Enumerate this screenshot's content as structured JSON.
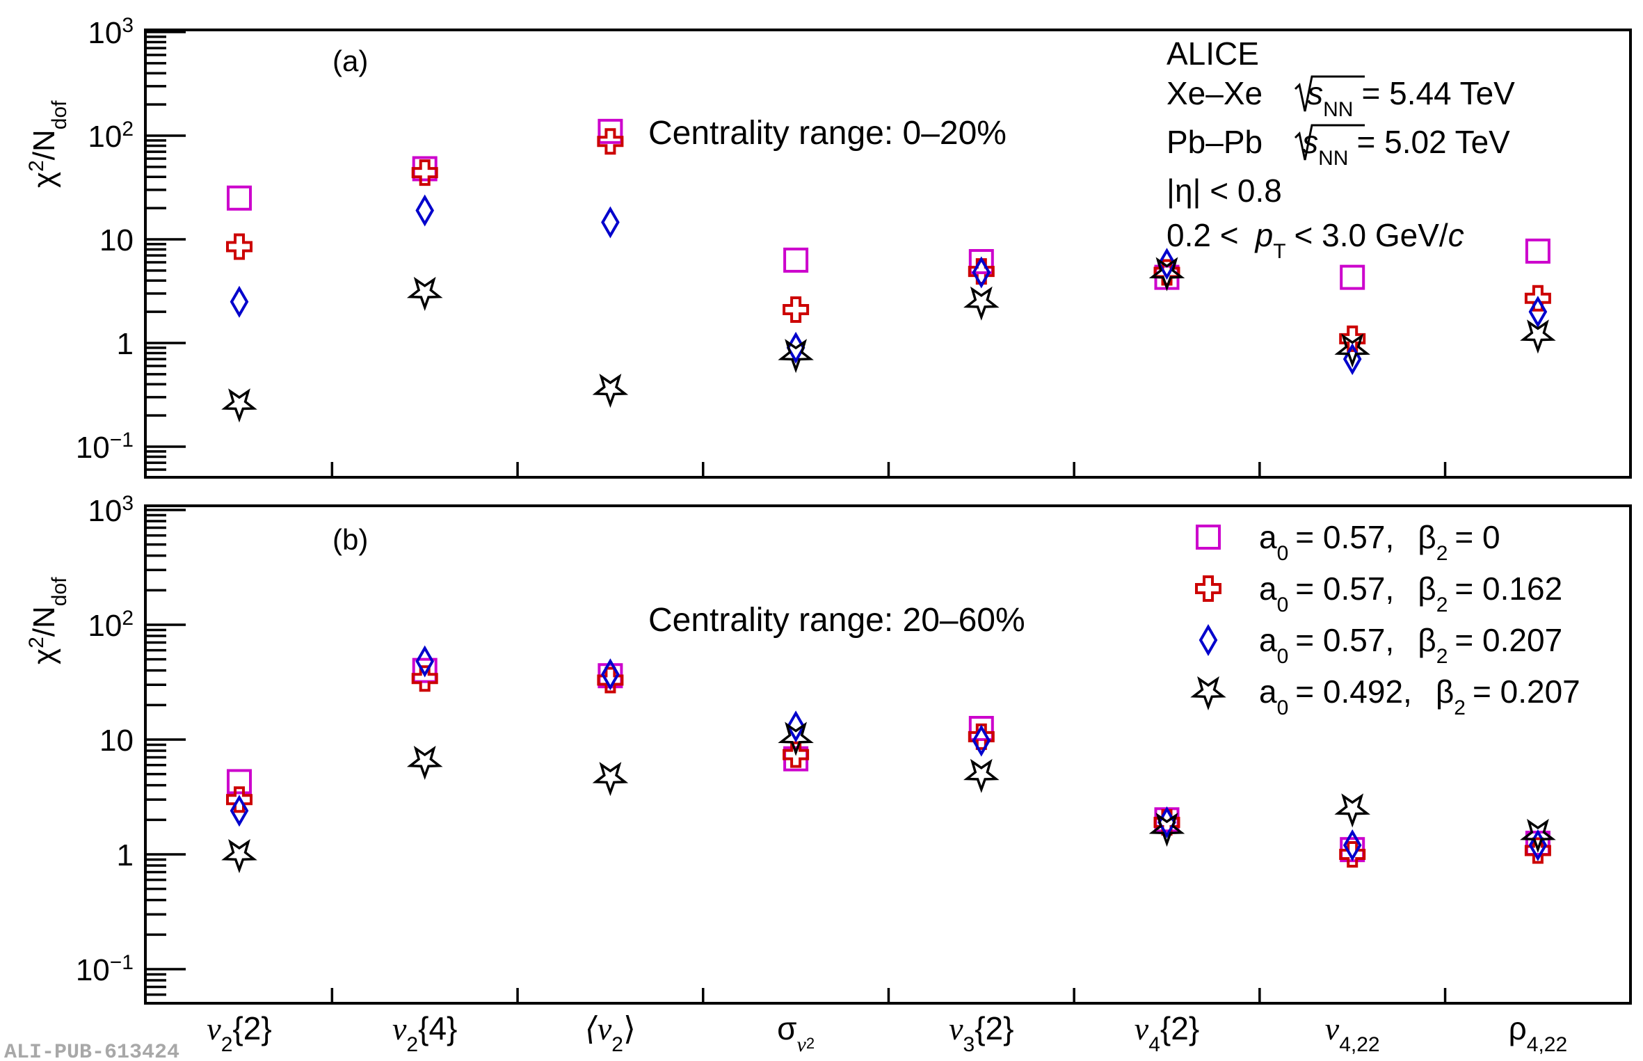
{
  "chart_data": [
    {
      "panel": "(a)",
      "type": "scatter",
      "title": "Centrality range: 0–20%",
      "ylabel": "χ²/N_dof",
      "yscale": "log",
      "ylim": [
        0.05,
        1000
      ],
      "ytick_labels": [
        "10³",
        "10²",
        "10",
        "1",
        "10⁻¹"
      ],
      "ytick_values": [
        1000,
        100,
        10,
        1,
        0.1
      ],
      "categories": [
        "v2{2}",
        "v2{4}",
        "⟨v2⟩",
        "σv2",
        "v3{2}",
        "v4{2}",
        "v4,22",
        "ρ4,22"
      ],
      "series": [
        {
          "name": "a0 = 0.57, β2 = 0",
          "marker": "square",
          "color": "#cc00cc",
          "values": [
            25,
            48,
            110,
            6.3,
            6.1,
            4.3,
            4.3,
            7.7
          ]
        },
        {
          "name": "a0 = 0.57, β2 = 0.162",
          "marker": "cross",
          "color": "#cc0000",
          "values": [
            8.5,
            44,
            88,
            2.1,
            4.9,
            4.8,
            1.1,
            2.7
          ]
        },
        {
          "name": "a0 = 0.57, β2 = 0.207",
          "marker": "diamond",
          "color": "#0000cc",
          "values": [
            2.5,
            19,
            14.6,
            0.9,
            4.8,
            5.8,
            0.7,
            2.0
          ]
        },
        {
          "name": "a0 = 0.492, β2 = 0.207",
          "marker": "star",
          "color": "#000000",
          "values": [
            0.26,
            3.1,
            0.36,
            0.78,
            2.5,
            4.8,
            0.88,
            1.2
          ]
        }
      ],
      "annotations": {
        "experiment": "ALICE",
        "xexe_system": "Xe–Xe",
        "xexe_energy": "= 5.44 TeV",
        "pbpb_system": "Pb–Pb",
        "pbpb_energy": "= 5.02 TeV",
        "sqrt_s_label": "s",
        "sqrt_s_sub": "NN",
        "eta_cut": "|η| < 0.8",
        "pt_cut_left": "0.2 <",
        "pt_cut_var": "p",
        "pt_cut_sub": "T",
        "pt_cut_right": "< 3.0 GeV/",
        "pt_cut_unit": "c"
      }
    },
    {
      "panel": "(b)",
      "type": "scatter",
      "title": "Centrality range: 20–60%",
      "ylabel": "χ²/N_dof",
      "yscale": "log",
      "ylim": [
        0.05,
        1000
      ],
      "ytick_labels": [
        "10³",
        "10²",
        "10",
        "1",
        "10⁻¹"
      ],
      "ytick_values": [
        1000,
        100,
        10,
        1,
        0.1
      ],
      "categories": [
        "v2{2}",
        "v2{4}",
        "⟨v2⟩",
        "σv2",
        "v3{2}",
        "v4{2}",
        "v4,22",
        "ρ4,22"
      ],
      "series": [
        {
          "name": "a0 = 0.57, β2 = 0",
          "marker": "square",
          "color": "#cc00cc",
          "values": [
            4.3,
            40,
            36,
            6.8,
            12.5,
            2.0,
            1.1,
            1.25
          ]
        },
        {
          "name": "a0 = 0.57, β2 = 0.162",
          "marker": "cross",
          "color": "#cc0000",
          "values": [
            3.0,
            34,
            33,
            7.4,
            10.6,
            1.9,
            1.0,
            1.08
          ]
        },
        {
          "name": "a0 = 0.57, β2 = 0.207",
          "marker": "diamond",
          "color": "#0000cc",
          "values": [
            2.4,
            48,
            37,
            13,
            9.8,
            1.9,
            1.2,
            1.2
          ]
        },
        {
          "name": "a0 = 0.492, β2 = 0.207",
          "marker": "star",
          "color": "#000000",
          "values": [
            1.0,
            6.5,
            4.7,
            10.5,
            5.0,
            1.7,
            2.5,
            1.5
          ]
        }
      ],
      "legend": {
        "placement": "top-right",
        "entries": [
          {
            "a": "a",
            "a_sub": "0",
            "a_val": "= 0.57,",
            "b": "β",
            "b_sub": "2",
            "b_val": "= 0"
          },
          {
            "a": "a",
            "a_sub": "0",
            "a_val": "= 0.57,",
            "b": "β",
            "b_sub": "2",
            "b_val": "= 0.162"
          },
          {
            "a": "a",
            "a_sub": "0",
            "a_val": "= 0.57,",
            "b": "β",
            "b_sub": "2",
            "b_val": "= 0.207"
          },
          {
            "a": "a",
            "a_sub": "0",
            "a_val": "= 0.492,",
            "b": "β",
            "b_sub": "2",
            "b_val": "= 0.207"
          }
        ]
      }
    }
  ],
  "axis": {
    "ylabel_main": "χ",
    "ylabel_sup": "2",
    "ylabel_mid": "/N",
    "ylabel_sub": "dof",
    "xlabels": [
      {
        "main": "v",
        "sub": "2",
        "rest": "{2}"
      },
      {
        "main": "v",
        "sub": "2",
        "rest": "{4}"
      },
      {
        "main": "⟨v",
        "sub": "2",
        "rest": "⟩"
      },
      {
        "main": "σ",
        "sub": "v",
        "subsub": "2",
        "rest": ""
      },
      {
        "main": "v",
        "sub": "3",
        "rest": "{2}"
      },
      {
        "main": "v",
        "sub": "4",
        "rest": "{2}"
      },
      {
        "main": "v",
        "sub": "4,22",
        "rest": ""
      },
      {
        "main": "ρ",
        "sub": "4,22",
        "rest": ""
      }
    ],
    "ytick_text": {
      "base": "10",
      "exp3": "3",
      "exp2": "2",
      "ten": "10",
      "one": "1",
      "expm1": "−1"
    }
  },
  "panel_labels": {
    "a": "(a)",
    "b": "(b)"
  },
  "watermark": "ALI-PUB-613424"
}
